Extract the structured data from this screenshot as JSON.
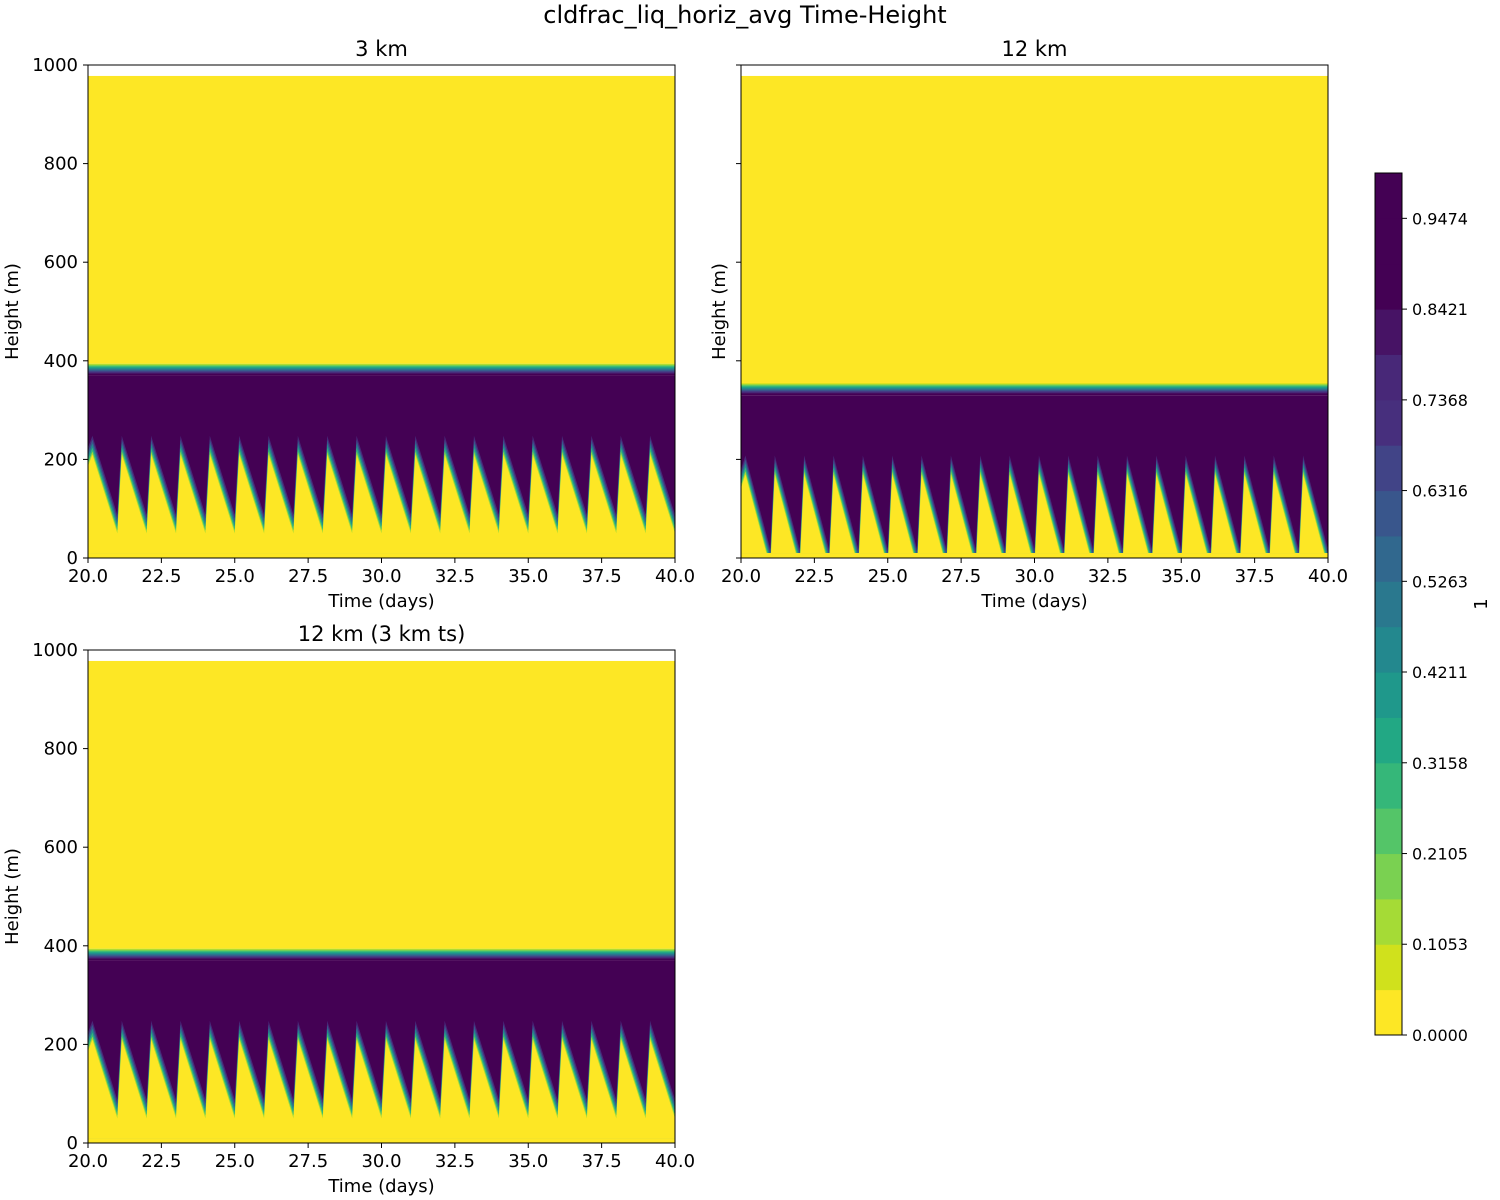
{
  "figure_title": "cldfrac_liq_horiz_avg Time-Height",
  "chart_data": [
    {
      "type": "heatmap",
      "title": "3 km",
      "xlabel": "Time (days)",
      "ylabel": "Height (m)",
      "xlim": [
        20,
        40
      ],
      "ylim": [
        0,
        1000
      ],
      "xticks": [
        "20.0",
        "22.5",
        "25.0",
        "27.5",
        "30.0",
        "32.5",
        "35.0",
        "37.5",
        "40.0"
      ],
      "yticks": [
        "0",
        "200",
        "400",
        "600",
        "800",
        "1000"
      ],
      "show_yticklabels": true,
      "field": {
        "data_top_m": 978,
        "data_bottom_m": 10,
        "cloud_top_m": 395,
        "cloud_solid_top_m": 370,
        "cycle_days": 1.0,
        "cycles": 20,
        "cloud_base_peak_m": 240,
        "cloud_base_trough_m": 80,
        "transition_m": 20,
        "in_cloud_fraction": 1.0,
        "clear_fraction": 0.0
      }
    },
    {
      "type": "heatmap",
      "title": "12 km",
      "xlabel": "Time (days)",
      "ylabel": "Height (m)",
      "xlim": [
        20,
        40
      ],
      "ylim": [
        0,
        1000
      ],
      "xticks": [
        "20.0",
        "22.5",
        "25.0",
        "27.5",
        "30.0",
        "32.5",
        "35.0",
        "37.5",
        "40.0"
      ],
      "yticks": [
        "0",
        "200",
        "400",
        "600",
        "800",
        "1000"
      ],
      "show_yticklabels": false,
      "field": {
        "data_top_m": 978,
        "data_bottom_m": 10,
        "cloud_top_m": 355,
        "cloud_solid_top_m": 330,
        "cycle_days": 1.0,
        "cycles": 20,
        "cloud_base_peak_m": 200,
        "cloud_base_trough_m": 10,
        "transition_m": 20,
        "in_cloud_fraction": 1.0,
        "clear_fraction": 0.0
      }
    },
    {
      "type": "heatmap",
      "title": "12 km (3 km ts)",
      "xlabel": "Time (days)",
      "ylabel": "Height (m)",
      "xlim": [
        20,
        40
      ],
      "ylim": [
        0,
        1000
      ],
      "xticks": [
        "20.0",
        "22.5",
        "25.0",
        "27.5",
        "30.0",
        "32.5",
        "35.0",
        "37.5",
        "40.0"
      ],
      "yticks": [
        "0",
        "200",
        "400",
        "600",
        "800",
        "1000"
      ],
      "show_yticklabels": true,
      "field": {
        "data_top_m": 978,
        "data_bottom_m": 10,
        "cloud_top_m": 395,
        "cloud_solid_top_m": 370,
        "cycle_days": 1.0,
        "cycles": 20,
        "cloud_base_peak_m": 240,
        "cloud_base_trough_m": 80,
        "transition_m": 20,
        "in_cloud_fraction": 1.0,
        "clear_fraction": 0.0
      }
    }
  ],
  "colorbar": {
    "label": "1",
    "levels": 19,
    "range": [
      0.0,
      1.0
    ],
    "tick_values": [
      0.0,
      0.1053,
      0.2105,
      0.3158,
      0.4211,
      0.5263,
      0.6316,
      0.7368,
      0.8421,
      0.9474
    ],
    "tick_labels": [
      "0.0000",
      "0.1053",
      "0.2105",
      "0.3158",
      "0.4211",
      "0.5263",
      "0.6316",
      "0.7368",
      "0.8421",
      "0.9474"
    ],
    "colors": [
      "#fde725",
      "#d0e11c",
      "#a5db36",
      "#7ad151",
      "#54c568",
      "#35b779",
      "#22a884",
      "#1f988b",
      "#23888e",
      "#2a788e",
      "#31688e",
      "#39568c",
      "#414487",
      "#472f7d",
      "#482878",
      "#471365",
      "#440154",
      "#440154",
      "#440154"
    ]
  }
}
